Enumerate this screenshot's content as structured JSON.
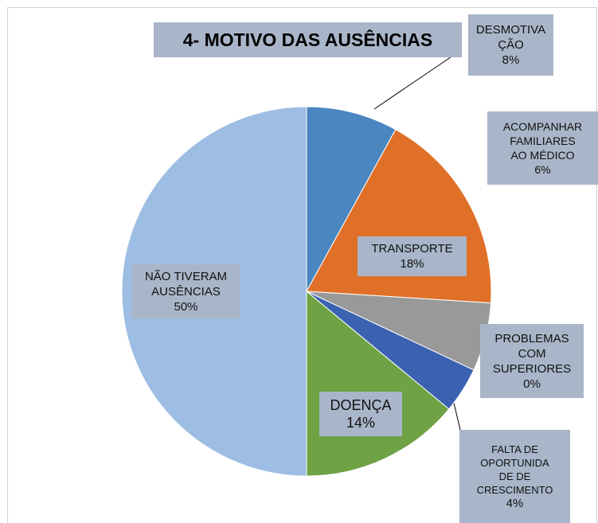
{
  "chart_data": {
    "type": "pie",
    "title": "4- MOTIVO DAS AUSÊNCIAS",
    "categories": [
      "DESMOTIVA\nÇÃO",
      "TRANSPORTE",
      "ACOMPANHAR\nFAMILIARES\nAO MÉDICO",
      "PROBLEMAS\nCOM\nSUPERIORES",
      "FALTA DE\nOPORTUNIDA\nDE DE\nCRESCIMENTO",
      "DOENÇA",
      "NÃO TIVERAM\nAUSÊNCIAS"
    ],
    "values": [
      8,
      18,
      6,
      0,
      4,
      14,
      50
    ],
    "value_labels": [
      "8%",
      "18%",
      "6%",
      "0%",
      "4%",
      "14%",
      "50%"
    ],
    "colors": [
      "#4a86c0",
      "#e07028",
      "#999999",
      "#7f7f7f",
      "#3a62b0",
      "#6ea244",
      "#9dbde3"
    ]
  }
}
